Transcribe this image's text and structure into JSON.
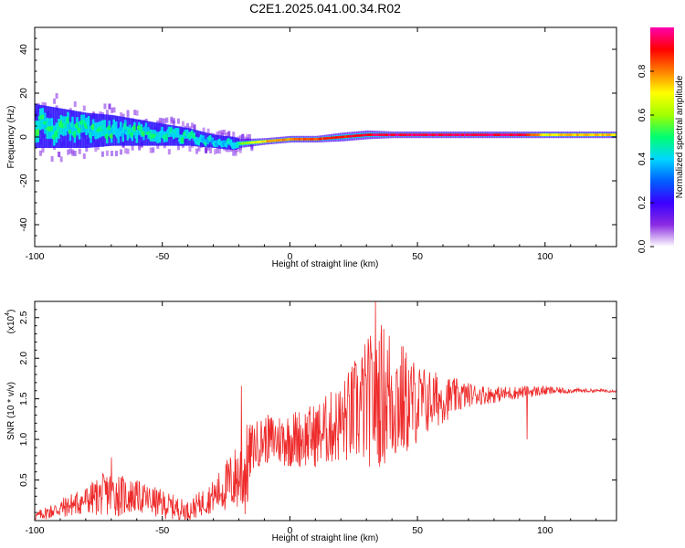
{
  "title": "C2E1.2025.041.00.34.R02",
  "chart_data": [
    {
      "type": "heatmap",
      "xlabel": "Height of straight line (km)",
      "ylabel": "Frequency (Hz)",
      "xlim": [
        -100,
        128
      ],
      "ylim": [
        -50,
        50
      ],
      "xticks": [
        -100,
        -50,
        0,
        50,
        100
      ],
      "xtick_labels": [
        "-100",
        "-50",
        "0",
        "50",
        "100"
      ],
      "yticks": [
        -40,
        -20,
        0,
        20,
        40
      ],
      "ytick_labels": [
        "-40",
        "-20",
        "0",
        "20",
        "40"
      ],
      "ridge": {
        "x": [
          -100,
          -90,
          -80,
          -70,
          -60,
          -50,
          -40,
          -30,
          -22,
          -20,
          -10,
          0,
          10,
          20,
          30,
          40,
          50,
          60,
          70,
          80,
          90,
          100,
          110,
          120,
          128
        ],
        "freq": [
          5,
          4,
          3,
          3,
          2,
          1,
          0,
          -2,
          -3,
          -3,
          -2,
          -1,
          -1,
          0,
          1,
          1,
          1,
          1,
          1,
          1,
          1,
          1,
          1,
          1,
          1
        ],
        "spread": [
          10,
          9,
          8,
          7,
          6,
          5,
          4,
          3,
          3,
          2,
          1.5,
          1.5,
          1.5,
          2,
          2,
          1.5,
          1.5,
          1.5,
          1.5,
          1.5,
          1.5,
          1.5,
          1.5,
          1.5,
          1.5
        ],
        "amplitude": [
          0.45,
          0.45,
          0.45,
          0.42,
          0.42,
          0.42,
          0.4,
          0.4,
          0.35,
          0.55,
          0.75,
          0.8,
          0.85,
          0.9,
          0.92,
          0.95,
          0.95,
          0.95,
          0.95,
          0.95,
          0.95,
          0.7,
          0.75,
          0.75,
          0.75
        ]
      },
      "colorbar": {
        "label": "Normalized spectral amplitude",
        "range": [
          0,
          1
        ],
        "ticks": [
          0.0,
          0.2,
          0.4,
          0.6,
          0.8
        ],
        "tick_labels": [
          "0.0",
          "0.2",
          "0.4",
          "0.6",
          "0.8"
        ],
        "colormap": [
          "#ffffff",
          "#8a2be2",
          "#3a00ff",
          "#0060ff",
          "#00d8ff",
          "#00ff70",
          "#a0ff00",
          "#ffff00",
          "#ff7f00",
          "#ff0000",
          "#ff00b0"
        ]
      }
    },
    {
      "type": "line",
      "xlabel": "Height of straight line (km)",
      "ylabel": "SNR (10 * v/v)",
      "y_scale_label": "(x10",
      "y_scale_exp": "4",
      "y_scale_close": ")",
      "xlim": [
        -100,
        128
      ],
      "ylim": [
        0,
        2.7
      ],
      "xticks": [
        -100,
        -50,
        0,
        50,
        100
      ],
      "xtick_labels": [
        "-100",
        "-50",
        "0",
        "50",
        "100"
      ],
      "yticks": [
        0.5,
        1.0,
        1.5,
        2.0,
        2.5
      ],
      "ytick_labels": [
        "0.5",
        "1.0",
        "1.5",
        "2.0",
        "2.5"
      ],
      "color": "#ee2a2a",
      "envelope": {
        "x": [
          -100,
          -90,
          -80,
          -70,
          -65,
          -60,
          -50,
          -40,
          -30,
          -20,
          -17,
          -15,
          -10,
          0,
          10,
          20,
          30,
          35,
          40,
          45,
          50,
          60,
          70,
          80,
          90,
          100,
          110,
          120,
          128
        ],
        "mean": [
          0.05,
          0.15,
          0.25,
          0.35,
          0.3,
          0.3,
          0.2,
          0.12,
          0.3,
          0.55,
          0.6,
          0.9,
          1.0,
          1.0,
          1.05,
          1.2,
          1.45,
          1.55,
          1.55,
          1.45,
          1.45,
          1.5,
          1.55,
          1.55,
          1.58,
          1.6,
          1.6,
          1.6,
          1.6
        ],
        "amp": [
          0.05,
          0.12,
          0.18,
          0.3,
          0.25,
          0.2,
          0.18,
          0.12,
          0.2,
          0.45,
          0.6,
          0.3,
          0.3,
          0.35,
          0.4,
          0.5,
          0.8,
          0.9,
          0.9,
          0.7,
          0.5,
          0.3,
          0.15,
          0.1,
          0.08,
          0.06,
          0.03,
          0.02,
          0.02
        ]
      },
      "peaks": [
        {
          "x": 33.5,
          "y": 2.72
        },
        {
          "x": -19,
          "y": 1.66
        },
        {
          "x": -70,
          "y": 0.78
        },
        {
          "x": 93,
          "y": 1.0
        }
      ]
    }
  ]
}
